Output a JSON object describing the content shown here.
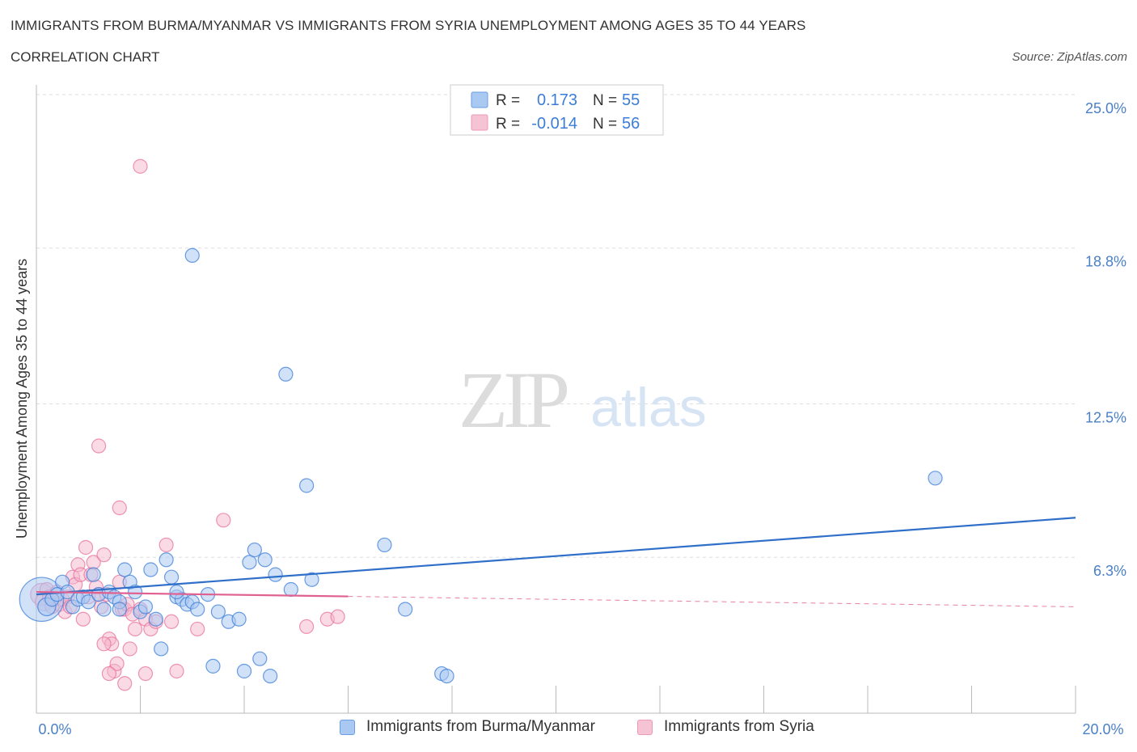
{
  "header": {
    "title": "IMMIGRANTS FROM BURMA/MYANMAR VS IMMIGRANTS FROM SYRIA UNEMPLOYMENT AMONG AGES 35 TO 44 YEARS",
    "subtitle": "CORRELATION CHART",
    "source": "Source: ZipAtlas.com"
  },
  "watermark": {
    "zip": "ZIP",
    "atlas": "atlas"
  },
  "colors": {
    "blue": "#3b7dd8",
    "blue_fill": "#a9c8f2",
    "blue_line": "#2f6fc9",
    "pink": "#e8729c",
    "pink_fill": "#f6b7cc",
    "pink_line": "#e0608f",
    "axis_label": "#4a80c8",
    "grid": "#dddddd"
  },
  "stats_legend": {
    "rows": [
      {
        "r_label": "R =",
        "r_value": "0.173",
        "n_label": "N =",
        "n_value": "55",
        "series": "blue"
      },
      {
        "r_label": "R =",
        "r_value": "-0.014",
        "n_label": "N =",
        "n_value": "56",
        "series": "pink"
      }
    ]
  },
  "chart_data": {
    "type": "scatter",
    "title": "IMMIGRANTS FROM BURMA/MYANMAR VS IMMIGRANTS FROM SYRIA UNEMPLOYMENT AMONG AGES 35 TO 44 YEARS",
    "xlabel": "",
    "ylabel": "Unemployment Among Ages 35 to 44 years",
    "xlim": [
      0,
      20
    ],
    "ylim": [
      0,
      25
    ],
    "x_tick_labels": [
      "0.0%",
      "20.0%"
    ],
    "y_ticks": [
      6.3,
      12.5,
      18.8,
      25.0
    ],
    "y_tick_labels": [
      "6.3%",
      "12.5%",
      "18.8%",
      "25.0%"
    ],
    "grid": true,
    "legend_position": "bottom",
    "series": [
      {
        "name": "Immigrants from Burma/Myanmar",
        "color": "blue",
        "R": 0.173,
        "N": 55,
        "trend": {
          "x0": 0,
          "y0": 4.8,
          "x1": 20,
          "y1": 7.9,
          "dashed_from": null
        },
        "points": [
          [
            0.1,
            4.6,
            3.2
          ],
          [
            0.2,
            4.3,
            1.3
          ],
          [
            0.3,
            4.6,
            1
          ],
          [
            0.4,
            4.8,
            1
          ],
          [
            0.5,
            5.3,
            1
          ],
          [
            0.6,
            4.9,
            1
          ],
          [
            0.7,
            4.3,
            1
          ],
          [
            0.8,
            4.6,
            1
          ],
          [
            0.9,
            4.7,
            1
          ],
          [
            1.0,
            4.5,
            1
          ],
          [
            1.1,
            5.6,
            1
          ],
          [
            1.2,
            4.8,
            1
          ],
          [
            1.3,
            4.2,
            1
          ],
          [
            1.4,
            4.9,
            1
          ],
          [
            1.5,
            4.7,
            1
          ],
          [
            1.6,
            4.5,
            1
          ],
          [
            1.7,
            5.8,
            1
          ],
          [
            1.8,
            5.3,
            1
          ],
          [
            1.9,
            4.9,
            1
          ],
          [
            2.0,
            4.1,
            1
          ],
          [
            2.1,
            4.3,
            1
          ],
          [
            2.2,
            5.8,
            1
          ],
          [
            2.3,
            3.8,
            1
          ],
          [
            2.5,
            6.2,
            1
          ],
          [
            2.6,
            5.5,
            1
          ],
          [
            2.7,
            4.7,
            1
          ],
          [
            2.8,
            4.6,
            1
          ],
          [
            2.9,
            4.4,
            1
          ],
          [
            3.0,
            4.5,
            1
          ],
          [
            3.1,
            4.2,
            1
          ],
          [
            3.3,
            4.8,
            1
          ],
          [
            3.4,
            1.9,
            1
          ],
          [
            3.5,
            4.1,
            1
          ],
          [
            3.7,
            3.7,
            1
          ],
          [
            3.9,
            3.8,
            1
          ],
          [
            4.1,
            6.1,
            1
          ],
          [
            4.2,
            6.6,
            1
          ],
          [
            4.4,
            6.2,
            1
          ],
          [
            4.6,
            5.6,
            1
          ],
          [
            4.9,
            5.0,
            1
          ],
          [
            5.3,
            5.4,
            1
          ],
          [
            6.7,
            6.8,
            1
          ],
          [
            7.1,
            4.2,
            1
          ],
          [
            7.8,
            1.6,
            1
          ],
          [
            7.9,
            1.5,
            1
          ],
          [
            4.8,
            13.7,
            1
          ],
          [
            3.0,
            18.5,
            1
          ],
          [
            5.2,
            9.2,
            1
          ],
          [
            17.3,
            9.5,
            1
          ],
          [
            2.4,
            2.6,
            1
          ],
          [
            4.0,
            1.7,
            1
          ],
          [
            4.5,
            1.5,
            1
          ],
          [
            4.3,
            2.2,
            1
          ],
          [
            1.6,
            4.2,
            1
          ],
          [
            2.7,
            4.9,
            1
          ]
        ]
      },
      {
        "name": "Immigrants from Syria",
        "color": "pink",
        "R": -0.014,
        "N": 56,
        "trend": {
          "x0": 0,
          "y0": 4.9,
          "x1": 20,
          "y1": 4.3,
          "dashed_from": 6.0
        },
        "points": [
          [
            0.1,
            4.8,
            1.6
          ],
          [
            0.15,
            4.5,
            1.3
          ],
          [
            0.2,
            5.0,
            1
          ],
          [
            0.25,
            4.7,
            1
          ],
          [
            0.3,
            4.3,
            1
          ],
          [
            0.35,
            4.6,
            1
          ],
          [
            0.4,
            4.9,
            1
          ],
          [
            0.45,
            4.4,
            1
          ],
          [
            0.5,
            4.6,
            1
          ],
          [
            0.55,
            4.1,
            1
          ],
          [
            0.6,
            4.7,
            1
          ],
          [
            0.65,
            4.3,
            1
          ],
          [
            0.7,
            5.5,
            1
          ],
          [
            0.75,
            5.2,
            1
          ],
          [
            0.8,
            6.0,
            1
          ],
          [
            0.85,
            5.6,
            1
          ],
          [
            0.9,
            3.8,
            1
          ],
          [
            0.95,
            6.7,
            1
          ],
          [
            1.0,
            4.7,
            1
          ],
          [
            1.05,
            5.6,
            1
          ],
          [
            1.1,
            6.1,
            1
          ],
          [
            1.15,
            5.1,
            1
          ],
          [
            1.2,
            4.8,
            1
          ],
          [
            1.25,
            4.3,
            1
          ],
          [
            1.3,
            6.4,
            1
          ],
          [
            1.35,
            4.8,
            1
          ],
          [
            1.4,
            3.0,
            1
          ],
          [
            1.45,
            2.8,
            1
          ],
          [
            1.5,
            1.7,
            1
          ],
          [
            1.55,
            2.0,
            1
          ],
          [
            1.6,
            5.3,
            1
          ],
          [
            1.65,
            4.2,
            1
          ],
          [
            1.7,
            4.2,
            1
          ],
          [
            1.75,
            4.4,
            1
          ],
          [
            1.8,
            2.6,
            1
          ],
          [
            1.85,
            4.0,
            1
          ],
          [
            1.9,
            3.4,
            1
          ],
          [
            2.0,
            4.2,
            1
          ],
          [
            2.1,
            3.8,
            1
          ],
          [
            2.2,
            3.4,
            1
          ],
          [
            2.3,
            3.7,
            1
          ],
          [
            2.5,
            6.8,
            1
          ],
          [
            2.6,
            3.7,
            1
          ],
          [
            3.1,
            3.4,
            1
          ],
          [
            3.6,
            7.8,
            1
          ],
          [
            5.2,
            3.5,
            1
          ],
          [
            5.6,
            3.8,
            1
          ],
          [
            5.8,
            3.9,
            1
          ],
          [
            1.2,
            10.8,
            1
          ],
          [
            1.6,
            8.3,
            1
          ],
          [
            2.0,
            22.1,
            1
          ],
          [
            1.7,
            1.2,
            1
          ],
          [
            2.1,
            1.6,
            1
          ],
          [
            1.3,
            2.8,
            1
          ],
          [
            1.4,
            1.6,
            1
          ],
          [
            2.7,
            1.7,
            1
          ]
        ]
      }
    ]
  },
  "legend_bottom": {
    "items": [
      {
        "label": "Immigrants from Burma/Myanmar",
        "series": "blue"
      },
      {
        "label": "Immigrants from Syria",
        "series": "pink"
      }
    ]
  }
}
